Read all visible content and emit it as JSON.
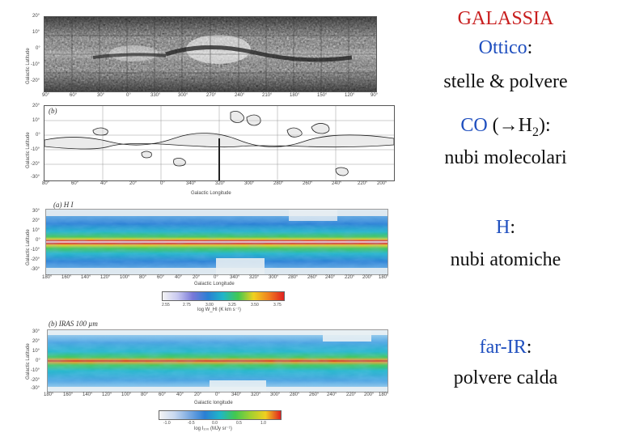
{
  "right_text": {
    "title": "GALASSIA",
    "optical_label": "Ottico",
    "optical_colon": ":",
    "optical_desc": "stelle & polvere",
    "co_label": "CO",
    "co_formula_open": " (",
    "co_arrow": "→",
    "co_h": "H",
    "co_sub": "2",
    "co_close": "):",
    "co_desc": "nubi molecolari",
    "h_label": "H",
    "h_colon": ":",
    "h_desc": "nubi atomiche",
    "fir_label": "far-IR",
    "fir_colon": ":",
    "fir_desc": "polvere calda"
  },
  "panels": {
    "optical": {
      "ylabel": "Galactic Latitude",
      "yticks": [
        "20°",
        "10°",
        "0°",
        "-10°",
        "-20°"
      ],
      "xticks": [
        "90°",
        "60°",
        "30°",
        "0°",
        "330°",
        "300°",
        "270°",
        "240°",
        "210°",
        "180°",
        "150°",
        "120°",
        "90°"
      ]
    },
    "co": {
      "tag": "(b)",
      "ylabel": "Galactic Latitude",
      "xlabel": "Galactic Longitude",
      "yticks": [
        "20°",
        "10°",
        "0°",
        "-10°",
        "-20°",
        "-30°"
      ],
      "xticks": [
        "80°",
        "60°",
        "40°",
        "20°",
        "0°",
        "340°",
        "320°",
        "300°",
        "280°",
        "260°",
        "240°",
        "220°",
        "200°"
      ]
    },
    "hi": {
      "tag": "(a) H I",
      "ylabel": "Galactic Latitude",
      "xlabel": "Galactic Longitude",
      "yticks": [
        "30°",
        "20°",
        "10°",
        "0°",
        "-10°",
        "-20°",
        "-30°"
      ],
      "xticks": [
        "180°",
        "160°",
        "140°",
        "120°",
        "100°",
        "80°",
        "60°",
        "40°",
        "20°",
        "0°",
        "340°",
        "320°",
        "300°",
        "280°",
        "260°",
        "240°",
        "220°",
        "200°",
        "180°"
      ],
      "cbar_ticks": [
        "2.55",
        "2.75",
        "3.00",
        "3.25",
        "3.50",
        "3.75"
      ],
      "cbar_label": "log W_HI (K km s⁻¹)"
    },
    "iras": {
      "tag": "(b) IRAS 100 µm",
      "ylabel": "Galactic Latitude",
      "xlabel": "Galactic longitude",
      "yticks": [
        "30°",
        "20°",
        "10°",
        "0°",
        "-10°",
        "-20°",
        "-30°"
      ],
      "xticks": [
        "180°",
        "160°",
        "140°",
        "120°",
        "100°",
        "80°",
        "60°",
        "40°",
        "20°",
        "0°",
        "340°",
        "320°",
        "300°",
        "280°",
        "260°",
        "240°",
        "220°",
        "200°",
        "180°"
      ],
      "cbar_ticks": [
        "-1.0",
        "-0.5",
        "0.0",
        "0.5",
        "1.0"
      ],
      "cbar_label": "log I₁₀₀ (MJy sr⁻¹)"
    }
  },
  "colors": {
    "title_red": "#c81e1e",
    "label_blue": "#1f4fbf"
  }
}
